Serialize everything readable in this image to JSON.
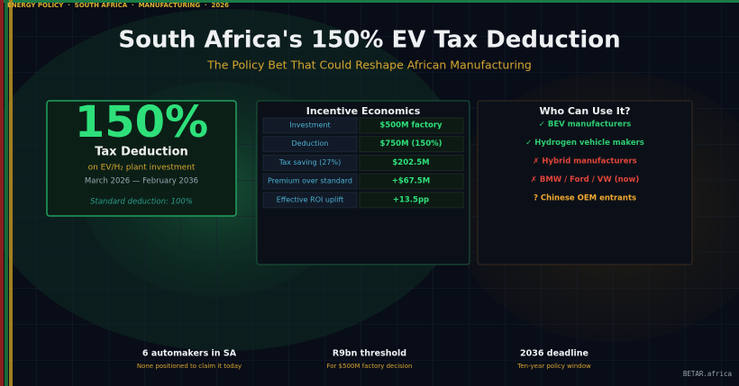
{
  "header": {
    "tagline": "ENERGY POLICY  ·  SOUTH AFRICA  ·  MANUFACTURING  ·  2026",
    "title": "South Africa's 150% EV Tax Deduction",
    "subtitle": "The Policy Bet That Could Reshape African Manufacturing"
  },
  "hero": {
    "figure": "150%",
    "label": "Tax Deduction",
    "detail": "on EV/H₂ plant investment",
    "period": "March 2026 — February 2036",
    "note": "Standard deduction: 100%"
  },
  "table": {
    "title": "Incentive Economics",
    "rows": [
      [
        "Investment",
        "$500M factory"
      ],
      [
        "Deduction",
        "$750M (150%)"
      ],
      [
        "Tax saving (27%)",
        "$202.5M"
      ],
      [
        "Premium over standard",
        "+$67.5M"
      ],
      [
        "Effective ROI uplift",
        "+13.5pp"
      ]
    ]
  },
  "eligibility": {
    "title": "Who Can Use It?",
    "items": [
      {
        "text": "✓ BEV manufacturers",
        "color": "#2ecc71"
      },
      {
        "text": "✓ Hydrogen vehicle makers",
        "color": "#2ecc71"
      },
      {
        "text": "✗ Hybrid manufacturers",
        "color": "#e0443a"
      },
      {
        "text": "✗ BMW / Ford / VW (now)",
        "color": "#e0443a"
      },
      {
        "text": "? Chinese OEM entrants",
        "color": "#f0a830"
      }
    ]
  },
  "stats": [
    {
      "value": "6 automakers in SA",
      "label": "None positioned to claim it today"
    },
    {
      "value": "R9bn threshold",
      "label": "For $500M factory decision"
    },
    {
      "value": "2036 deadline",
      "label": "Ten-year policy window"
    }
  ],
  "footer": {
    "brand": "BETAR.africa"
  }
}
